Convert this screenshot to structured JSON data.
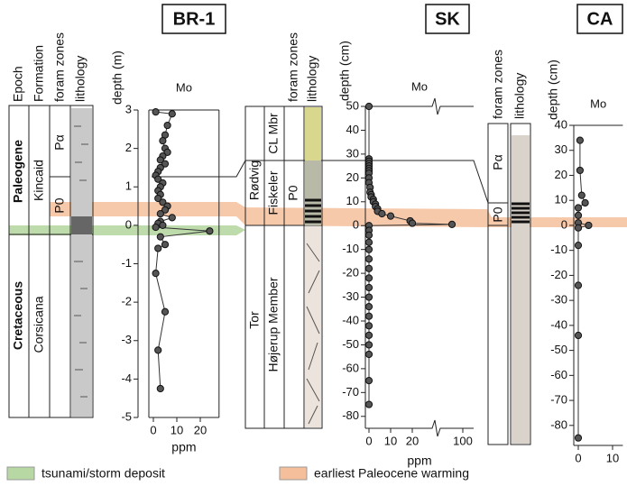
{
  "chart_data": [
    {
      "type": "line",
      "title": "BR-1",
      "ylabel": "depth (m)",
      "xlabel": "ppm",
      "column_labels": [
        "Epoch",
        "Formation",
        "foram zones",
        "lithology"
      ],
      "unit_labels": [
        "Paleogene",
        "Cretaceous",
        "Kincaid",
        "Corsicana",
        "Pα",
        "P0"
      ],
      "ylim": [
        -5,
        3
      ],
      "yticks": [
        -5,
        -4,
        -3,
        -2,
        -1,
        0,
        1,
        2,
        3
      ],
      "xlim": [
        0,
        28
      ],
      "xticks": [
        0,
        10,
        20
      ],
      "series": [
        {
          "name": "Mo",
          "color": "#555555",
          "values": [
            2.95,
            2.9,
            2.6,
            2.35,
            2.2,
            2.0,
            1.9,
            1.8,
            1.7,
            1.6,
            1.5,
            1.4,
            1.3,
            1.2,
            1.1,
            1.0,
            0.9,
            0.8,
            0.7,
            0.6,
            0.5,
            0.4,
            0.3,
            0.2,
            0.1,
            0.05,
            0,
            -0.05,
            -0.15,
            -0.3,
            -0.5,
            -0.6,
            -1.25,
            -2.25,
            -3.25,
            -4.25
          ],
          "x": [
            1,
            8,
            6,
            5,
            4,
            5,
            6,
            4,
            3,
            5,
            3,
            2,
            1,
            2,
            4,
            3,
            2,
            3,
            2,
            4,
            6,
            5,
            3,
            8,
            3,
            2,
            4,
            1,
            24,
            3,
            5,
            2,
            1,
            5,
            2,
            3
          ]
        }
      ]
    },
    {
      "type": "line",
      "title": "SK",
      "ylabel": "depth (cm)",
      "xlabel": "ppm",
      "column_labels": [
        "foram zones",
        "lithology"
      ],
      "unit_labels": [
        "Rødvig",
        "Fiskeler",
        "CL Mbr",
        "P0",
        "Tor",
        "Højerup Member"
      ],
      "ylim": [
        -85,
        50
      ],
      "yticks": [
        -80,
        -70,
        -60,
        -50,
        -40,
        -30,
        -20,
        -10,
        0,
        10,
        20,
        30,
        40,
        50
      ],
      "xlim": [
        0,
        105
      ],
      "xticks": [
        0,
        10,
        20,
        100
      ],
      "xbreak": [
        30,
        90
      ],
      "series": [
        {
          "name": "Mo",
          "color": "#555555",
          "values": [
            50,
            28,
            27,
            26,
            25,
            24,
            23,
            22,
            20,
            18,
            16,
            14,
            13,
            12,
            11,
            10,
            9,
            8,
            7,
            6,
            5,
            4,
            2,
            1,
            0.5,
            0,
            -2,
            -4,
            -7,
            -10,
            -14,
            -18,
            -22,
            -26,
            -30,
            -34,
            -38,
            -42,
            -46,
            -50,
            -54,
            -65,
            -75
          ],
          "x": [
            0,
            0,
            0,
            0,
            0,
            0,
            0,
            0,
            0,
            0,
            0.5,
            0.5,
            1,
            1,
            2,
            2,
            3,
            3,
            4,
            4,
            6,
            10,
            19,
            20,
            95,
            0,
            0,
            0,
            0,
            0,
            0,
            0,
            0,
            0,
            0,
            0,
            0,
            0,
            0,
            0,
            0,
            0,
            0
          ]
        }
      ]
    },
    {
      "type": "line",
      "title": "CA",
      "ylabel": "depth (cm)",
      "column_labels": [
        "foram zones",
        "lithology"
      ],
      "unit_labels": [
        "Pα",
        "P0"
      ],
      "ylim": [
        -88,
        40
      ],
      "yticks": [
        -80,
        -70,
        -60,
        -50,
        -40,
        -30,
        -20,
        -10,
        0,
        10,
        20,
        30,
        40
      ],
      "xlim": [
        0,
        13
      ],
      "xticks": [
        0,
        10
      ],
      "series": [
        {
          "name": "Mo",
          "color": "#555555",
          "values": [
            34,
            22,
            12,
            9,
            7,
            4,
            1,
            0,
            -1,
            -8,
            -24,
            -44,
            -85
          ],
          "x": [
            0.5,
            0.5,
            1,
            2,
            0,
            0,
            0,
            3,
            0,
            0,
            0,
            0,
            0
          ]
        }
      ]
    }
  ],
  "legend": [
    {
      "label": "tsunami/storm deposit",
      "color": "#b7d7a3"
    },
    {
      "label": "earliest Paleocene warming",
      "color": "#f6bf9c"
    }
  ]
}
